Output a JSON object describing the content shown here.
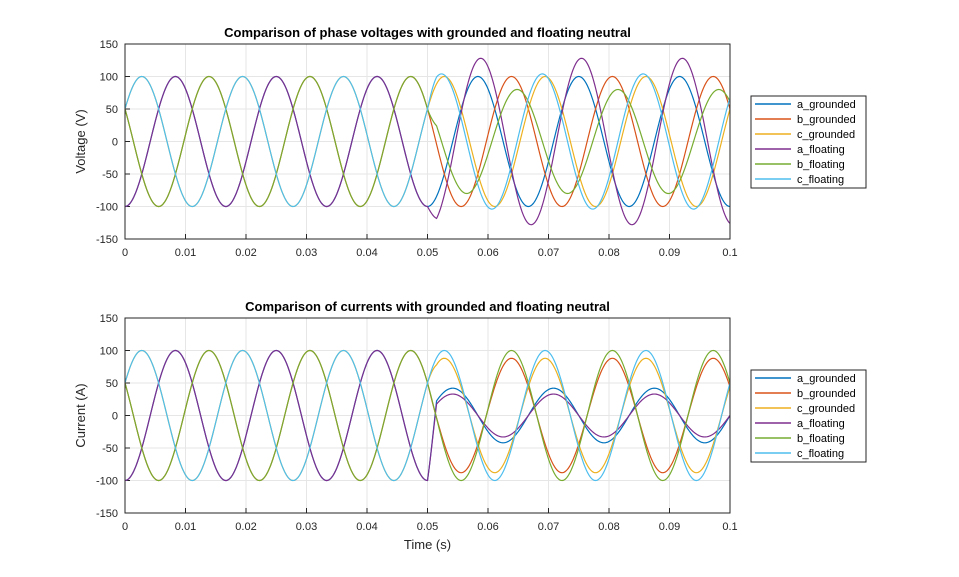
{
  "chart_data": [
    {
      "type": "line",
      "title": "Comparison of phase voltages with grounded and floating neutral",
      "xlabel": "",
      "ylabel": "Voltage (V)",
      "xlim": [
        0,
        0.1
      ],
      "ylim": [
        -150,
        150
      ],
      "xticks": [
        "0",
        "0.01",
        "0.02",
        "0.03",
        "0.04",
        "0.05",
        "0.06",
        "0.07",
        "0.08",
        "0.09",
        "0.1"
      ],
      "yticks": [
        "150",
        "100",
        "50",
        "0",
        "-50",
        "-100",
        "-150"
      ],
      "grid": true,
      "legend_position": "outside-right",
      "fault_time": 0.05,
      "fundamental_hz": 60,
      "series": [
        {
          "name": "a_grounded",
          "color": "#0072BD",
          "amplitude_pre": 100,
          "amplitude_post": 100,
          "phase_deg": -90,
          "freq_post_hz": 60,
          "phase_post_deg": -90,
          "dc_post": 0
        },
        {
          "name": "b_grounded",
          "color": "#D95319",
          "amplitude_pre": 100,
          "amplitude_post": 100,
          "phase_deg": -210,
          "freq_post_hz": 60,
          "phase_post_deg": -210,
          "dc_post": 0
        },
        {
          "name": "c_grounded",
          "color": "#EDB120",
          "amplitude_pre": 100,
          "amplitude_post": 100,
          "phase_deg": 30,
          "freq_post_hz": 60,
          "phase_post_deg": 30,
          "dc_post": 0
        },
        {
          "name": "a_floating",
          "color": "#7E2F8E",
          "amplitude_pre": 100,
          "amplitude_post": 128,
          "phase_deg": -90,
          "freq_post_hz": 60,
          "phase_post_deg": -100,
          "dc_post": 0
        },
        {
          "name": "b_floating",
          "color": "#77AC30",
          "amplitude_pre": 100,
          "amplitude_post": 80,
          "phase_deg": -210,
          "freq_post_hz": 60,
          "phase_post_deg": -230,
          "dc_post": 0
        },
        {
          "name": "c_floating",
          "color": "#4DBEEE",
          "amplitude_pre": 100,
          "amplitude_post": 104,
          "phase_deg": 30,
          "freq_post_hz": 60,
          "phase_post_deg": 40,
          "dc_post": 0
        }
      ]
    },
    {
      "type": "line",
      "title": "Comparison of currents with grounded and floating neutral",
      "xlabel": "Time (s)",
      "ylabel": "Current (A)",
      "xlim": [
        0,
        0.1
      ],
      "ylim": [
        -150,
        150
      ],
      "xticks": [
        "0",
        "0.01",
        "0.02",
        "0.03",
        "0.04",
        "0.05",
        "0.06",
        "0.07",
        "0.08",
        "0.09",
        "0.1"
      ],
      "yticks": [
        "150",
        "100",
        "50",
        "0",
        "-50",
        "-100",
        "-150"
      ],
      "grid": true,
      "legend_position": "outside-right",
      "fault_time": 0.05,
      "fundamental_hz": 60,
      "series": [
        {
          "name": "a_grounded",
          "color": "#0072BD",
          "amplitude_pre": 100,
          "amplitude_post": 42,
          "phase_deg": -90,
          "freq_post_hz": 60,
          "phase_post_deg": 0,
          "dc_post": 0
        },
        {
          "name": "b_grounded",
          "color": "#D95319",
          "amplitude_pre": 100,
          "amplitude_post": 88,
          "phase_deg": -210,
          "freq_post_hz": 60,
          "phase_post_deg": -210,
          "dc_post": 0
        },
        {
          "name": "c_grounded",
          "color": "#EDB120",
          "amplitude_pre": 100,
          "amplitude_post": 88,
          "phase_deg": 30,
          "freq_post_hz": 60,
          "phase_post_deg": 30,
          "dc_post": 0
        },
        {
          "name": "a_floating",
          "color": "#7E2F8E",
          "amplitude_pre": 100,
          "amplitude_post": 33,
          "phase_deg": -90,
          "freq_post_hz": 60,
          "phase_post_deg": 0,
          "dc_post": 0
        },
        {
          "name": "b_floating",
          "color": "#77AC30",
          "amplitude_pre": 100,
          "amplitude_post": 100,
          "phase_deg": -210,
          "freq_post_hz": 60,
          "phase_post_deg": -210,
          "dc_post": 0
        },
        {
          "name": "c_floating",
          "color": "#4DBEEE",
          "amplitude_pre": 100,
          "amplitude_post": 100,
          "phase_deg": 30,
          "freq_post_hz": 60,
          "phase_post_deg": 30,
          "dc_post": 0
        }
      ]
    }
  ]
}
